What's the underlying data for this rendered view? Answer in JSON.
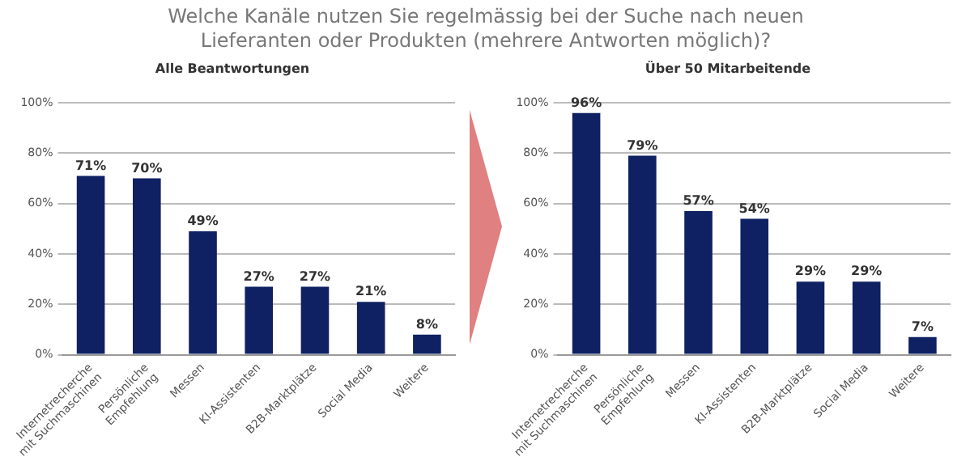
{
  "chart_data": [
    {
      "type": "bar",
      "title": "Welche Kanäle nutzen Sie regelmässig bei der Suche nach neuen Lieferanten oder Produkten (mehrere Antworten möglich)?",
      "subtitle": "Alle Beantwortungen",
      "categories": [
        "Internetrecherche mit Suchmaschinen",
        "Persönliche Empfehlung",
        "Messen",
        "KI-Assistenten",
        "B2B-Marktplätze",
        "Social Media",
        "Weitere"
      ],
      "values": [
        71,
        70,
        49,
        27,
        27,
        21,
        8
      ],
      "value_labels": [
        "71%",
        "70%",
        "49%",
        "27%",
        "27%",
        "21%",
        "8%"
      ],
      "color": "#0f2163",
      "ylim": [
        0,
        100
      ],
      "yticks": [
        {
          "value": 0,
          "label": "0%"
        },
        {
          "value": 20,
          "label": "20%"
        },
        {
          "value": 40,
          "label": "40%"
        },
        {
          "value": 60,
          "label": "60%"
        },
        {
          "value": 80,
          "label": "80%"
        },
        {
          "value": 100,
          "label": "100%"
        }
      ],
      "grid": "y"
    },
    {
      "type": "bar",
      "subtitle": "Über 50 Mitarbeitende",
      "categories": [
        "Internetrecherche mit Suchmaschinen",
        "Persönliche Empfehlung",
        "Messen",
        "KI-Assistenten",
        "B2B-Marktplätze",
        "Social Media",
        "Weitere"
      ],
      "values": [
        96,
        79,
        57,
        54,
        29,
        29,
        7
      ],
      "value_labels": [
        "96%",
        "79%",
        "57%",
        "54%",
        "29%",
        "29%",
        "7%"
      ],
      "color": "#0f2163",
      "ylim": [
        0,
        100
      ],
      "yticks": [
        {
          "value": 0,
          "label": "0%"
        },
        {
          "value": 20,
          "label": "20%"
        },
        {
          "value": 40,
          "label": "40%"
        },
        {
          "value": 60,
          "label": "60%"
        },
        {
          "value": 80,
          "label": "80%"
        },
        {
          "value": 100,
          "label": "100%"
        }
      ],
      "grid": "y"
    }
  ]
}
